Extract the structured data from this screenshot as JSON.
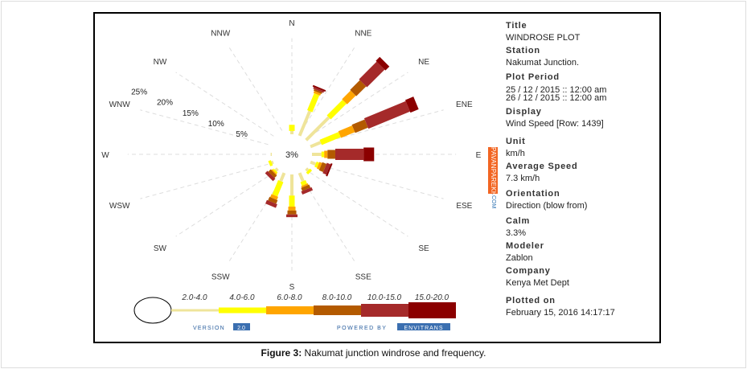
{
  "chart_data": {
    "type": "windrose",
    "directions": [
      "N",
      "NNE",
      "NE",
      "ENE",
      "E",
      "ESE",
      "SE",
      "SSE",
      "S",
      "SSW",
      "SW",
      "WSW",
      "W",
      "WNW",
      "NW",
      "NNW"
    ],
    "radial_ticks": [
      "5%",
      "10%",
      "15%",
      "20%",
      "25%"
    ],
    "radial_tick_values": [
      5,
      10,
      15,
      20,
      25
    ],
    "center_label": "3%",
    "bins": [
      "2.0-4.0",
      "4.0-6.0",
      "6.0-8.0",
      "8.0-10.0",
      "10.0-15.0",
      "15.0-20.0"
    ],
    "bin_colors": [
      "#efe49a",
      "#ffff00",
      "#ffa500",
      "#b35a00",
      "#a52a2a",
      "#8b0000"
    ],
    "frequencies_percent": [
      [
        0.6,
        1.1,
        0,
        0,
        0,
        0
      ],
      [
        4.8,
        3.3,
        0.4,
        0.3,
        0.3,
        0.3
      ],
      [
        5.8,
        4.0,
        2.2,
        2.5,
        4.5,
        1.0
      ],
      [
        2.0,
        3.7,
        2.7,
        2.5,
        8.1,
        1.6
      ],
      [
        1.7,
        0.5,
        0.6,
        1.4,
        5.1,
        1.9
      ],
      [
        1.0,
        0.5,
        0.5,
        0.8,
        0.7,
        0.3
      ],
      [
        0.5,
        0.5,
        0,
        0,
        0,
        0
      ],
      [
        1.6,
        0.7,
        0.3,
        0.6,
        0.6,
        0
      ],
      [
        3.8,
        2.0,
        0.7,
        0.7,
        0.5,
        0
      ],
      [
        1.6,
        2.8,
        0.6,
        0.7,
        0.7,
        0
      ],
      [
        0.5,
        0.3,
        0.2,
        0.6,
        0.6,
        0
      ],
      [
        0.3,
        0.5,
        0,
        0,
        0,
        0
      ],
      [
        0.2,
        0,
        0,
        0,
        0,
        0
      ],
      [
        0,
        0,
        0,
        0,
        0,
        0
      ],
      [
        0,
        0,
        0,
        0,
        0,
        0
      ],
      [
        0,
        0,
        0,
        0,
        0,
        0
      ]
    ],
    "version_label": "VERSION",
    "version_value": "2.0",
    "powered_label": "POWERED BY",
    "powered_value": "ENVITRANS"
  },
  "watermark": {
    "main": "PAVANPAREKH",
    "suffix": ".COM"
  },
  "info": [
    {
      "label": "Title",
      "value": "WINDROSE PLOT"
    },
    {
      "label": "Station",
      "value": "Nakumat Junction."
    },
    {
      "label": "Plot Period",
      "value": "25 / 12 / 2015 :: 12:00 am",
      "value2": "26 / 12 / 2015 :: 12:00 am"
    },
    {
      "label": "Display",
      "value": "Wind Speed [Row: 1439]"
    },
    {
      "label": "Unit",
      "value": "km/h"
    },
    {
      "label": "Average Speed",
      "value": "7.3 km/h"
    },
    {
      "label": "Orientation",
      "value": "Direction (blow from)"
    },
    {
      "label": "Calm",
      "value": "3.3%"
    },
    {
      "label": "Modeler",
      "value": "Zablon"
    },
    {
      "label": "Company",
      "value": "Kenya Met Dept"
    },
    {
      "label": "Plotted on",
      "value": "February 15, 2016 14:17:17"
    }
  ],
  "caption": {
    "prefix": "Figure 3:",
    "text": " Nakumat junction windrose and frequency."
  }
}
